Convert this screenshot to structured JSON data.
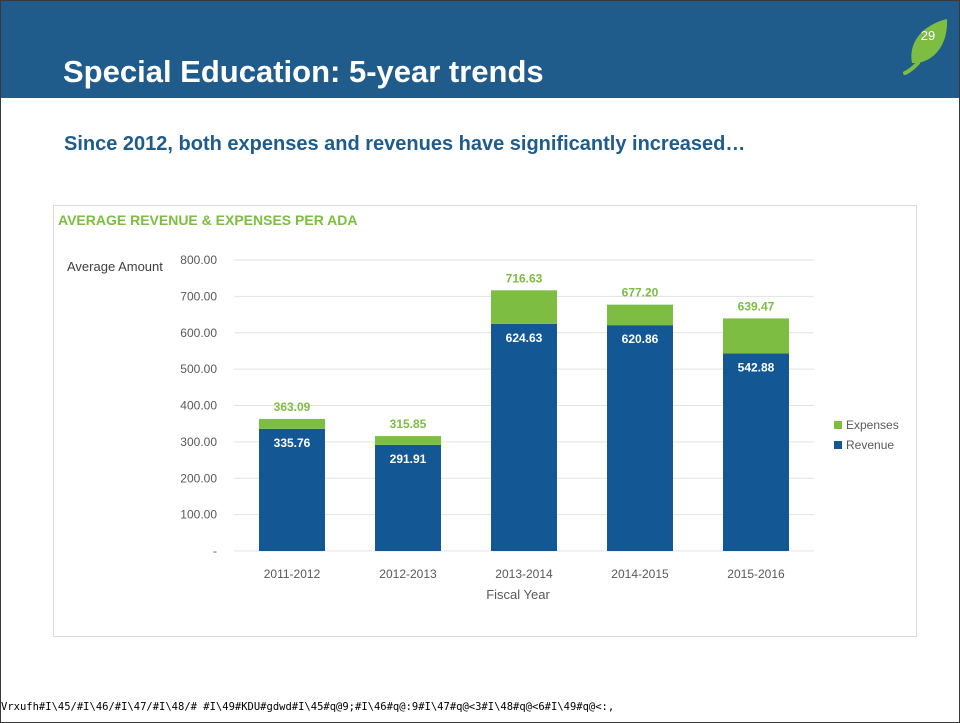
{
  "slide": {
    "title": "Special Education: 5-year trends",
    "number": "29",
    "subtitle": "Since 2012, both expenses and revenues have significantly increased…",
    "footer": "Vrxufh#I\\45/#I\\46/#I\\47/#I\\48/# #I\\49#KDU#gdwd#I\\45#q@9;#I\\46#q@:9#I\\47#q@<3#I\\48#q@<6#I\\49#q@<:,"
  },
  "colors": {
    "header": "#1f5c8c",
    "revenue": "#135794",
    "expenses": "#7cbd42",
    "chart_title": "#7cbd42",
    "leaf": "#7cbd42"
  },
  "chart_data": {
    "type": "bar",
    "stacked": true,
    "title": "AVERAGE REVENUE & EXPENSES PER ADA",
    "ylabel": "Average Amount",
    "xlabel": "Fiscal Year",
    "categories": [
      "2011-2012",
      "2012-2013",
      "2013-2014",
      "2014-2015",
      "2015-2016"
    ],
    "series": [
      {
        "name": "Revenue",
        "values": [
          335.76,
          291.91,
          624.63,
          620.86,
          542.88
        ],
        "labels": [
          "335.76",
          "291.91",
          "624.63",
          "620.86",
          "542.88"
        ]
      },
      {
        "name": "Expenses",
        "values": [
          27.33,
          23.94,
          92.0,
          56.34,
          96.59
        ]
      }
    ],
    "totals": [
      363.09,
      315.85,
      716.63,
      677.2,
      639.47
    ],
    "total_labels": [
      "363.09",
      "315.85",
      "716.63",
      "677.20",
      "639.47"
    ],
    "ylim": [
      0,
      800
    ],
    "yticks": [
      0,
      100,
      200,
      300,
      400,
      500,
      600,
      700,
      800
    ],
    "ytick_labels": [
      "-",
      "100.00",
      "200.00",
      "300.00",
      "400.00",
      "500.00",
      "600.00",
      "700.00",
      "800.00"
    ],
    "grid": true,
    "legend": [
      "Expenses",
      "Revenue"
    ],
    "legend_position": "right"
  }
}
